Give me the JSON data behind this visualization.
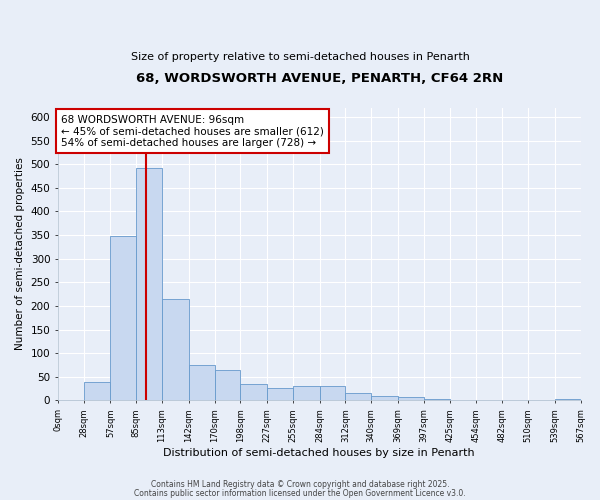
{
  "title": "68, WORDSWORTH AVENUE, PENARTH, CF64 2RN",
  "subtitle": "Size of property relative to semi-detached houses in Penarth",
  "xlabel": "Distribution of semi-detached houses by size in Penarth",
  "ylabel": "Number of semi-detached properties",
  "bin_edges": [
    0,
    28,
    57,
    85,
    113,
    142,
    170,
    198,
    227,
    255,
    284,
    312,
    340,
    369,
    397,
    425,
    454,
    482,
    510,
    539,
    567
  ],
  "bar_heights": [
    0,
    40,
    347,
    492,
    215,
    76,
    65,
    35,
    26,
    31,
    31,
    16,
    10,
    8,
    2,
    0,
    0,
    0,
    0,
    2
  ],
  "bar_color": "#c8d8f0",
  "bar_edgecolor": "#6699cc",
  "vline_x": 96,
  "vline_color": "#cc0000",
  "ylim": [
    0,
    620
  ],
  "yticks": [
    0,
    50,
    100,
    150,
    200,
    250,
    300,
    350,
    400,
    450,
    500,
    550,
    600
  ],
  "annotation_title": "68 WORDSWORTH AVENUE: 96sqm",
  "annotation_line1": "← 45% of semi-detached houses are smaller (612)",
  "annotation_line2": "54% of semi-detached houses are larger (728) →",
  "annotation_box_facecolor": "white",
  "annotation_box_edgecolor": "#cc0000",
  "footer_line1": "Contains HM Land Registry data © Crown copyright and database right 2025.",
  "footer_line2": "Contains public sector information licensed under the Open Government Licence v3.0.",
  "background_color": "#e8eef8",
  "grid_color": "#ffffff",
  "tick_labels": [
    "0sqm",
    "28sqm",
    "57sqm",
    "85sqm",
    "113sqm",
    "142sqm",
    "170sqm",
    "198sqm",
    "227sqm",
    "255sqm",
    "284sqm",
    "312sqm",
    "340sqm",
    "369sqm",
    "397sqm",
    "425sqm",
    "454sqm",
    "482sqm",
    "510sqm",
    "539sqm",
    "567sqm"
  ]
}
